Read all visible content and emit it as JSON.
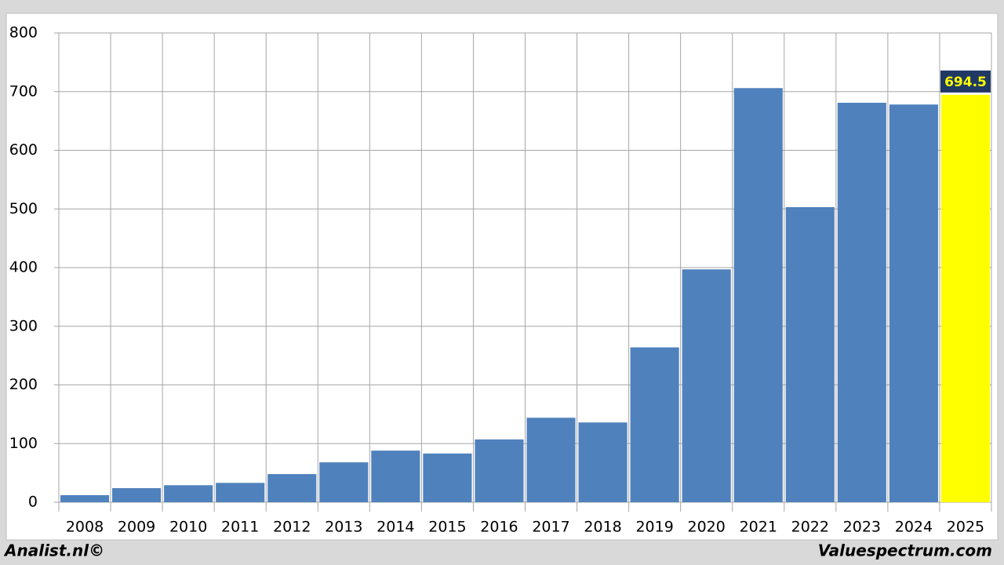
{
  "chart_data": {
    "type": "bar",
    "categories": [
      "2008",
      "2009",
      "2010",
      "2011",
      "2012",
      "2013",
      "2014",
      "2015",
      "2016",
      "2017",
      "2018",
      "2019",
      "2020",
      "2021",
      "2022",
      "2023",
      "2024",
      "2025"
    ],
    "values": [
      12,
      24,
      29,
      33,
      48,
      68,
      88,
      83,
      107,
      144,
      136,
      264,
      397,
      706,
      503,
      681,
      678,
      694.5
    ],
    "value_labels": [
      null,
      null,
      null,
      null,
      null,
      null,
      null,
      null,
      null,
      null,
      null,
      null,
      null,
      null,
      null,
      null,
      null,
      "694.5"
    ],
    "colors": [
      "#4f81bd",
      "#4f81bd",
      "#4f81bd",
      "#4f81bd",
      "#4f81bd",
      "#4f81bd",
      "#4f81bd",
      "#4f81bd",
      "#4f81bd",
      "#4f81bd",
      "#4f81bd",
      "#4f81bd",
      "#4f81bd",
      "#4f81bd",
      "#4f81bd",
      "#4f81bd",
      "#4f81bd",
      "#ffff00"
    ],
    "ylim": [
      0,
      800
    ],
    "yticks": [
      0,
      100,
      200,
      300,
      400,
      500,
      600,
      700,
      800
    ],
    "grid": true
  },
  "footer": {
    "left": "Analist.nl©",
    "right": "Valuespectrum.com"
  }
}
